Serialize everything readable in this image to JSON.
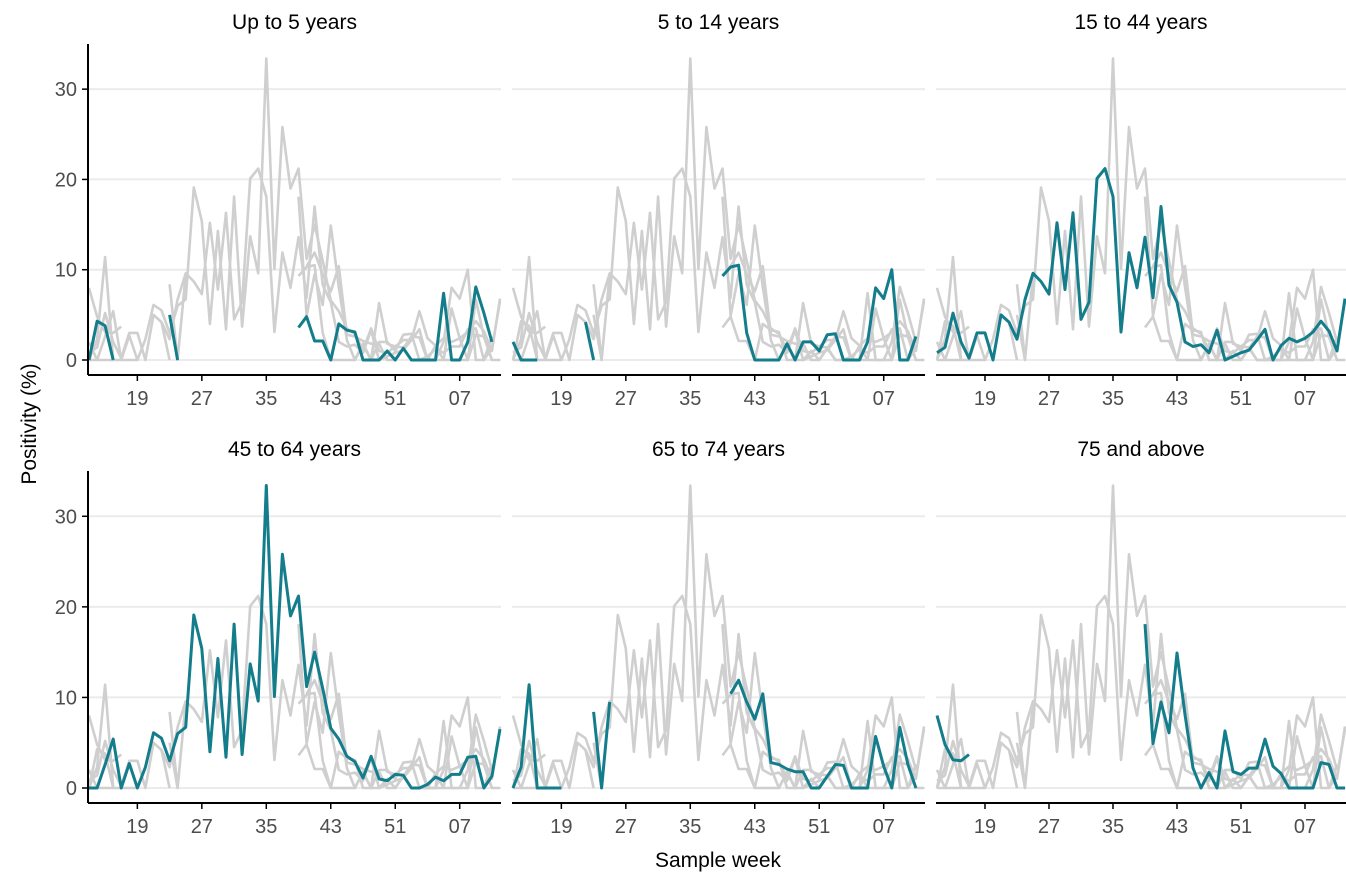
{
  "figure": {
    "xlabel": "Sample week",
    "ylabel": "Positivity (%)"
  },
  "colors": {
    "highlight": "#147d8c",
    "background_lines": "#cfcfcf",
    "grid": "#ebebeb",
    "axis": "#000000",
    "tick_text": "#4d4d4d"
  },
  "chart_data": {
    "type": "line",
    "facets": [
      "Up to 5 years",
      "5 to 14 years",
      "15 to 44 years",
      "45 to 64 years",
      "65 to 74 years",
      "75 and above"
    ],
    "x_tick_labels": [
      "19",
      "27",
      "35",
      "43",
      "51",
      "07"
    ],
    "x_tick_index": [
      6,
      14,
      22,
      30,
      38,
      46
    ],
    "y_ticks": [
      0,
      10,
      20,
      30
    ],
    "ylim": [
      0,
      35
    ],
    "x_count": 52,
    "grid": true,
    "series": [
      {
        "name": "Up to 5 years",
        "values": [
          0,
          4.3,
          3.8,
          0,
          null,
          null,
          null,
          null,
          null,
          null,
          5,
          0,
          null,
          null,
          null,
          null,
          null,
          null,
          null,
          null,
          null,
          null,
          null,
          null,
          null,
          null,
          3.6,
          4.8,
          2.1,
          2.1,
          0,
          4,
          3.3,
          3.1,
          0,
          0,
          0,
          1,
          0,
          1.3,
          0,
          0,
          0,
          0,
          7.4,
          0,
          0,
          2,
          8.1,
          5.2,
          2,
          null
        ]
      },
      {
        "name": "5 to 14 years",
        "values": [
          2,
          0,
          0,
          0,
          null,
          null,
          null,
          null,
          null,
          4.2,
          0,
          null,
          null,
          null,
          null,
          null,
          null,
          null,
          null,
          null,
          null,
          null,
          null,
          null,
          null,
          null,
          9.3,
          10.3,
          10.5,
          3,
          0,
          0,
          0,
          0,
          1.8,
          0,
          2,
          2,
          1,
          2.8,
          2.9,
          0,
          0,
          0,
          2,
          8,
          6.8,
          10,
          0,
          0,
          2.6,
          null
        ]
      },
      {
        "name": "15 to 44 years",
        "values": [
          0.8,
          1.4,
          5.2,
          2,
          0.2,
          3,
          3,
          0,
          5,
          4.2,
          2.3,
          6.7,
          9.6,
          8.7,
          7.3,
          15.2,
          7.8,
          16.3,
          4.5,
          6.4,
          20.1,
          21.2,
          18.1,
          3.1,
          11.9,
          8,
          13.6,
          6.9,
          17,
          8.3,
          6.4,
          2,
          1.5,
          1.7,
          0.8,
          3.3,
          0,
          0.4,
          0.8,
          1.1,
          2.2,
          3.4,
          0,
          1.6,
          2.4,
          2,
          2.4,
          3.1,
          4.3,
          3.2,
          1,
          6.8
        ]
      },
      {
        "name": "45 to 64 years",
        "values": [
          0,
          0,
          2.6,
          5.4,
          0,
          2.7,
          0,
          2.3,
          6.1,
          5.5,
          3,
          6,
          6.7,
          19.1,
          15.4,
          4,
          14.3,
          3.4,
          18.1,
          3.7,
          13.7,
          9.6,
          33.4,
          10.1,
          25.8,
          19,
          21.2,
          11.2,
          15,
          11,
          6.6,
          5.4,
          3.5,
          2.9,
          1.1,
          3.5,
          1,
          0.8,
          1.5,
          1.4,
          0,
          0,
          0.4,
          1.2,
          0.8,
          1.5,
          1.5,
          3.4,
          3.5,
          0,
          1.3,
          6.5
        ]
      },
      {
        "name": "65 to 74 years",
        "values": [
          0,
          2.3,
          11.4,
          0,
          0,
          0,
          0,
          null,
          null,
          null,
          8.4,
          0,
          9.5,
          null,
          null,
          null,
          null,
          null,
          null,
          null,
          null,
          null,
          null,
          null,
          null,
          null,
          null,
          10.4,
          11.9,
          9.5,
          7.6,
          10.4,
          2.8,
          2.6,
          2.1,
          1.8,
          1.8,
          0,
          0,
          1.3,
          2.6,
          2.5,
          0,
          0,
          0,
          5.7,
          2.4,
          0,
          6.7,
          2.6,
          0,
          null
        ]
      },
      {
        "name": "75 and above",
        "values": [
          8,
          4.8,
          3.1,
          3,
          3.7,
          null,
          null,
          null,
          null,
          null,
          null,
          null,
          null,
          null,
          null,
          null,
          null,
          null,
          null,
          null,
          null,
          null,
          null,
          null,
          null,
          null,
          18.1,
          4.9,
          9.5,
          6.1,
          14.9,
          8.1,
          2.2,
          0,
          1.7,
          0,
          6.3,
          1.8,
          1.5,
          2.2,
          2.2,
          5.4,
          2.4,
          1.6,
          0,
          0,
          0,
          0,
          2.8,
          2.6,
          0,
          0
        ]
      }
    ]
  }
}
